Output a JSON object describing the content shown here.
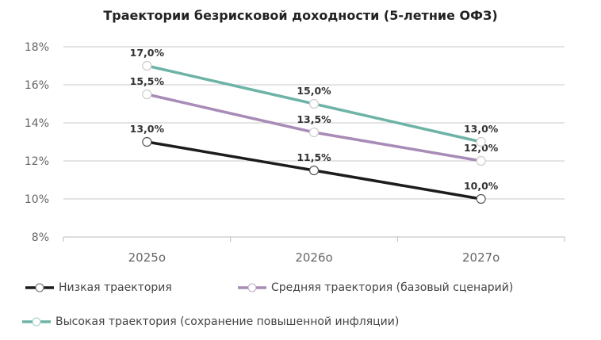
{
  "chart_data": {
    "type": "line",
    "title": "Траектории безрисковой доходности (5-летние ОФЗ)",
    "categories": [
      "2025о",
      "2026о",
      "2027о"
    ],
    "ylim": [
      8,
      18
    ],
    "yticks": [
      8,
      10,
      12,
      14,
      16,
      18
    ],
    "ytick_labels": [
      "8%",
      "10%",
      "12%",
      "14%",
      "16%",
      "18%"
    ],
    "grid": true,
    "legend_position": "bottom",
    "series": [
      {
        "name": "Низкая траектория",
        "values": [
          13.0,
          11.5,
          10.0
        ],
        "labels": [
          "13,0%",
          "11,5%",
          "10,0%"
        ],
        "color": "#1c1c1c"
      },
      {
        "name": "Средняя траектория (базовый сценарий)",
        "values": [
          15.5,
          13.5,
          12.0
        ],
        "labels": [
          "15,5%",
          "13,5%",
          "12,0%"
        ],
        "color": "#a88bb6"
      },
      {
        "name": "Высокая траектория (сохранение повышенной инфляции)",
        "values": [
          17.0,
          15.0,
          13.0
        ],
        "labels": [
          "17,0%",
          "15,0%",
          "13,0%"
        ],
        "color": "#6db3a6"
      }
    ]
  }
}
